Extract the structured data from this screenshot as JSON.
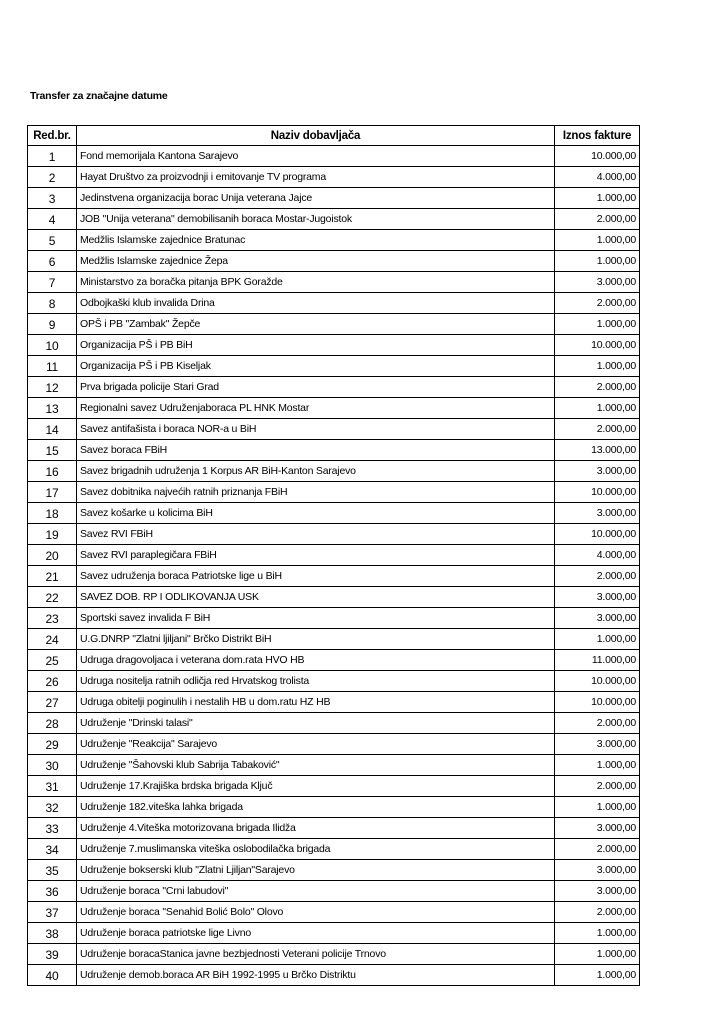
{
  "title": "Transfer za značajne datume",
  "table": {
    "headers": [
      "Red.br.",
      "Naziv dobavljača",
      "Iznos fakture"
    ],
    "rows": [
      [
        "1",
        "Fond memorijala Kantona Sarajevo",
        "10.000,00"
      ],
      [
        "2",
        "Hayat Društvo za proizvodnji i emitovanje TV programa",
        "4.000,00"
      ],
      [
        "3",
        "Jedinstvena organizacija borac Unija veterana Jajce",
        "1.000,00"
      ],
      [
        "4",
        "JOB \"Unija veterana\" demobilisanih boraca Mostar-Jugoistok",
        "2.000,00"
      ],
      [
        "5",
        "Medžlis Islamske zajednice Bratunac",
        "1.000,00"
      ],
      [
        "6",
        "Medžlis Islamske zajednice Žepa",
        "1.000,00"
      ],
      [
        "7",
        "Ministarstvo za boračka pitanja BPK Goražde",
        "3.000,00"
      ],
      [
        "8",
        "Odbojkaški klub invalida Drina",
        "2.000,00"
      ],
      [
        "9",
        "OPŠ i PB \"Zambak\" Žepče",
        "1.000,00"
      ],
      [
        "10",
        "Organizacija PŠ i PB BiH",
        "10.000,00"
      ],
      [
        "11",
        "Organizacija PŠ i PB Kiseljak",
        "1.000,00"
      ],
      [
        "12",
        "Prva brigada policije Stari Grad",
        "2.000,00"
      ],
      [
        "13",
        "Regionalni savez Udruženjaboraca PL HNK Mostar",
        "1.000,00"
      ],
      [
        "14",
        "Savez antifašista i boraca NOR-a u BiH",
        "2.000,00"
      ],
      [
        "15",
        "Savez boraca FBiH",
        "13.000,00"
      ],
      [
        "16",
        "Savez brigadnih udruženja 1 Korpus AR BiH-Kanton Sarajevo",
        "3.000,00"
      ],
      [
        "17",
        "Savez dobitnika najvećih ratnih priznanja FBiH",
        "10.000,00"
      ],
      [
        "18",
        "Savez košarke u kolicima BiH",
        "3.000,00"
      ],
      [
        "19",
        "Savez RVI FBiH",
        "10.000,00"
      ],
      [
        "20",
        "Savez RVI paraplegičara FBiH",
        "4.000,00"
      ],
      [
        "21",
        "Savez udruženja boraca Patriotske lige u BiH",
        "2.000,00"
      ],
      [
        "22",
        "SAVEZ DOB. RP I ODLIKOVANJA USK",
        "3.000,00"
      ],
      [
        "23",
        "Sportski savez invalida F BiH",
        "3.000,00"
      ],
      [
        "24",
        "U.G.DNRP \"Zlatni ljiljani\" Brčko Distrikt BiH",
        "1.000,00"
      ],
      [
        "25",
        "Udruga dragovoljaca i veterana dom.rata HVO HB",
        "11.000,00"
      ],
      [
        "26",
        "Udruga nositelja ratnih odličja red Hrvatskog trolista",
        "10.000,00"
      ],
      [
        "27",
        "Udruga obitelji poginulih i nestalih HB u dom.ratu HZ HB",
        "10.000,00"
      ],
      [
        "28",
        "Udruženje \"Drinski talasi\"",
        "2.000,00"
      ],
      [
        "29",
        "Udruženje \"Reakcija\" Sarajevo",
        "3.000,00"
      ],
      [
        "30",
        "Udruženje \"Šahovski klub Sabrija Tabaković\"",
        "1.000,00"
      ],
      [
        "31",
        "Udruženje 17.Krajiška brdska brigada Ključ",
        "2.000,00"
      ],
      [
        "32",
        "Udruženje 182.viteška lahka brigada",
        "1.000,00"
      ],
      [
        "33",
        "Udruženje 4.Viteška motorizovana brigada Ilidža",
        "3.000,00"
      ],
      [
        "34",
        "Udruženje 7.muslimanska viteška oslobodilačka brigada",
        "2.000,00"
      ],
      [
        "35",
        "Udruženje bokserski klub \"Zlatni Ljiljan\"Sarajevo",
        "3.000,00"
      ],
      [
        "36",
        "Udruženje boraca \"Crni labudovi\"",
        "3.000,00"
      ],
      [
        "37",
        "Udruženje boraca \"Senahid Bolić Bolo\" Olovo",
        "2.000,00"
      ],
      [
        "38",
        "Udruženje boraca patriotske lige Livno",
        "1.000,00"
      ],
      [
        "39",
        "Udruženje boracaStanica javne bezbjednosti Veterani policije Trnovo",
        "1.000,00"
      ],
      [
        "40",
        "Udruženje demob.boraca AR BiH 1992-1995 u Brčko Distriktu",
        "1.000,00"
      ]
    ]
  }
}
